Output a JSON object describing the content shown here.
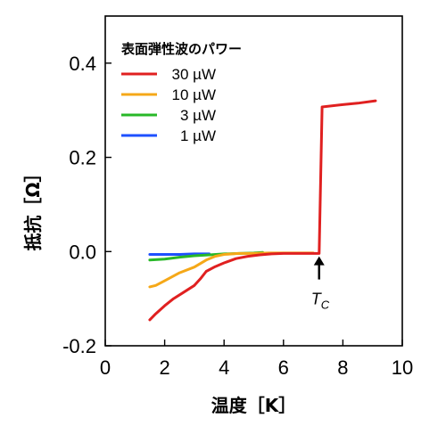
{
  "chart_data": {
    "type": "line",
    "xlabel": "温度［K］",
    "ylabel": "抵抗［Ω］",
    "xlim": [
      0,
      10
    ],
    "ylim": [
      -0.2,
      0.5
    ],
    "xticks": [
      0,
      2,
      4,
      6,
      8,
      10
    ],
    "yticks": [
      -0.2,
      0.0,
      0.2,
      0.4
    ],
    "xtick_labels": [
      "0",
      "2",
      "4",
      "6",
      "8",
      "10"
    ],
    "ytick_labels": [
      "-0.2",
      "0.0",
      "0.2",
      "0.4"
    ],
    "legend": {
      "title": "表面弾性波のパワー",
      "placement": "top-left"
    },
    "annotations": [
      {
        "text_main": "T",
        "text_sub": "C",
        "x": 7.2,
        "y": -0.04,
        "arrow_to": [
          7.2,
          -0.01
        ]
      }
    ],
    "series": [
      {
        "name": "30 µW",
        "color": "#e02020",
        "x": [
          1.5,
          1.7,
          2.0,
          2.3,
          2.6,
          3.0,
          3.2,
          3.4,
          3.7,
          4.0,
          4.4,
          4.8,
          5.2,
          5.6,
          6.0,
          6.4,
          6.8,
          7.1,
          7.2,
          7.3,
          8.0,
          8.5,
          9.1
        ],
        "y": [
          -0.145,
          -0.132,
          -0.115,
          -0.1,
          -0.088,
          -0.072,
          -0.058,
          -0.042,
          -0.032,
          -0.024,
          -0.015,
          -0.01,
          -0.007,
          -0.005,
          -0.004,
          -0.004,
          -0.004,
          -0.004,
          -0.004,
          0.307,
          0.312,
          0.315,
          0.32
        ]
      },
      {
        "name": "10 µW",
        "color": "#f5a818",
        "x": [
          1.5,
          1.7,
          2.0,
          2.5,
          3.0,
          3.4,
          3.7,
          4.0,
          4.5,
          5.0,
          5.5,
          6.0,
          6.5,
          7.0
        ],
        "y": [
          -0.075,
          -0.072,
          -0.062,
          -0.045,
          -0.033,
          -0.018,
          -0.01,
          -0.006,
          -0.004,
          -0.004,
          -0.003,
          -0.003,
          -0.003,
          -0.003
        ]
      },
      {
        "name": "3 µW",
        "color": "#28b828",
        "x": [
          1.5,
          2.0,
          2.5,
          3.0,
          3.5,
          4.0,
          4.5,
          5.0,
          5.3
        ],
        "y": [
          -0.018,
          -0.016,
          -0.012,
          -0.009,
          -0.007,
          -0.005,
          -0.004,
          -0.003,
          -0.002
        ]
      },
      {
        "name": "1 µW",
        "color": "#1e50ff",
        "x": [
          1.5,
          2.0,
          2.5,
          3.0,
          3.5
        ],
        "y": [
          -0.006,
          -0.006,
          -0.006,
          -0.005,
          -0.005
        ]
      }
    ]
  }
}
